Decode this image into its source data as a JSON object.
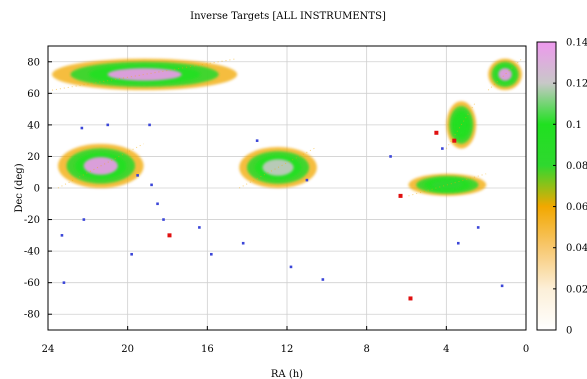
{
  "chart_data": {
    "type": "heatmap",
    "title": "Inverse Targets [ALL INSTRUMENTS]",
    "xlabel": "RA (h)",
    "ylabel": "Dec (deg)",
    "xlim": [
      24,
      0
    ],
    "ylim": [
      -90,
      90
    ],
    "x_ticks": [
      "24",
      "20",
      "16",
      "12",
      "8",
      "4",
      "0"
    ],
    "y_ticks": [
      "80",
      "60",
      "40",
      "20",
      "0",
      "-20",
      "-40",
      "-60",
      "-80"
    ],
    "grid": true,
    "colorbar": {
      "range": [
        0,
        0.14
      ],
      "ticks": [
        "0.14",
        "0.12",
        "0.1",
        "0.08",
        "0.06",
        "0.04",
        "0.02",
        "0"
      ],
      "colors": [
        "#ffffff",
        "#fcefd8",
        "#f8c870",
        "#f2a800",
        "#2fd82f",
        "#20e020",
        "#c8c8c8",
        "#ee99ee"
      ]
    },
    "regions": [
      {
        "name": "north-band-left",
        "ra": [
          23.8,
          14.5
        ],
        "dec": [
          62,
          82
        ],
        "peak": 0.14
      },
      {
        "name": "north-band-right",
        "ra": [
          1.9,
          0.2
        ],
        "dec": [
          62,
          82
        ],
        "peak": 0.14
      },
      {
        "name": "arc-left",
        "ra": [
          23.5,
          19.2
        ],
        "dec": [
          0,
          28
        ],
        "peak": 0.14
      },
      {
        "name": "center-patch",
        "ra": [
          14.4,
          10.5
        ],
        "dec": [
          0,
          26
        ],
        "peak": 0.13
      },
      {
        "name": "right-patch",
        "ra": [
          4.0,
          2.5
        ],
        "dec": [
          25,
          55
        ],
        "peak": 0.1
      },
      {
        "name": "lower-right-band",
        "ra": [
          5.9,
          2.0
        ],
        "dec": [
          -5,
          9
        ],
        "peak": 0.07
      }
    ],
    "points": [
      {
        "ra": 22.3,
        "dec": 38,
        "color": "blue"
      },
      {
        "ra": 21.0,
        "dec": 40,
        "color": "blue"
      },
      {
        "ra": 18.9,
        "dec": 40,
        "color": "blue"
      },
      {
        "ra": 19.5,
        "dec": 8,
        "color": "blue"
      },
      {
        "ra": 18.8,
        "dec": 2,
        "color": "blue"
      },
      {
        "ra": 18.5,
        "dec": -10,
        "color": "blue"
      },
      {
        "ra": 18.2,
        "dec": -20,
        "color": "blue"
      },
      {
        "ra": 17.9,
        "dec": -30,
        "color": "red"
      },
      {
        "ra": 16.4,
        "dec": -25,
        "color": "blue"
      },
      {
        "ra": 15.8,
        "dec": -42,
        "color": "blue"
      },
      {
        "ra": 14.2,
        "dec": -35,
        "color": "blue"
      },
      {
        "ra": 13.5,
        "dec": 30,
        "color": "blue"
      },
      {
        "ra": 11.0,
        "dec": 5,
        "color": "blue"
      },
      {
        "ra": 10.2,
        "dec": -58,
        "color": "blue"
      },
      {
        "ra": 5.8,
        "dec": -70,
        "color": "red"
      },
      {
        "ra": 4.5,
        "dec": 35,
        "color": "red"
      },
      {
        "ra": 4.2,
        "dec": 25,
        "color": "blue"
      },
      {
        "ra": 3.6,
        "dec": 30,
        "color": "red"
      },
      {
        "ra": 3.4,
        "dec": -35,
        "color": "blue"
      },
      {
        "ra": 2.4,
        "dec": -25,
        "color": "blue"
      },
      {
        "ra": 1.2,
        "dec": -62,
        "color": "blue"
      },
      {
        "ra": 23.3,
        "dec": -30,
        "color": "blue"
      },
      {
        "ra": 23.2,
        "dec": -60,
        "color": "blue"
      },
      {
        "ra": 22.2,
        "dec": -20,
        "color": "blue"
      },
      {
        "ra": 19.8,
        "dec": -42,
        "color": "blue"
      },
      {
        "ra": 6.3,
        "dec": -5,
        "color": "red"
      },
      {
        "ra": 6.8,
        "dec": 20,
        "color": "blue"
      },
      {
        "ra": 11.8,
        "dec": -50,
        "color": "blue"
      }
    ]
  }
}
